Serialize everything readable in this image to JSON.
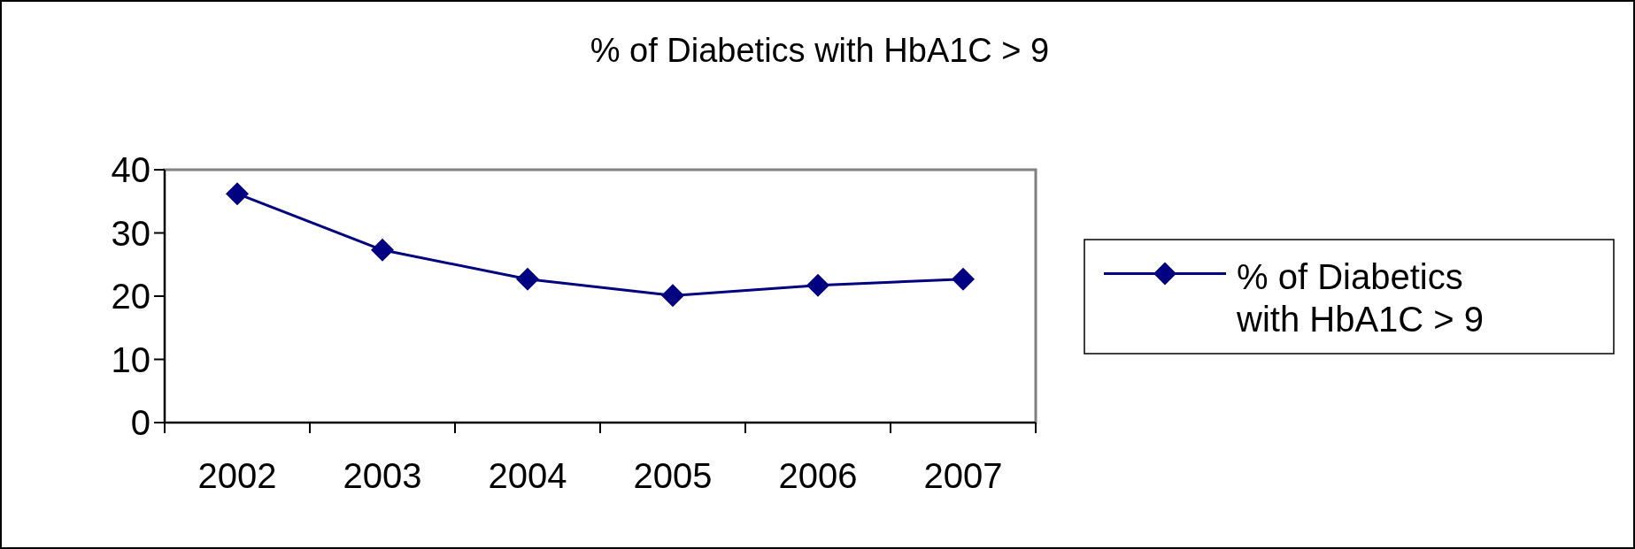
{
  "chart_data": {
    "type": "line",
    "title": "% of Diabetics with HbA1C > 9",
    "categories": [
      "2002",
      "2003",
      "2004",
      "2005",
      "2006",
      "2007"
    ],
    "series": [
      {
        "name": "% of Diabetics with HbA1C > 9",
        "color": "#000080",
        "values": [
          36.2,
          27.3,
          22.7,
          20.1,
          21.7,
          22.7
        ]
      }
    ],
    "ylim": [
      0,
      40
    ],
    "yticks": [
      0,
      10,
      20,
      30,
      40
    ],
    "grid": false,
    "legend": "right",
    "marker": "diamond",
    "line_style": "solid"
  }
}
